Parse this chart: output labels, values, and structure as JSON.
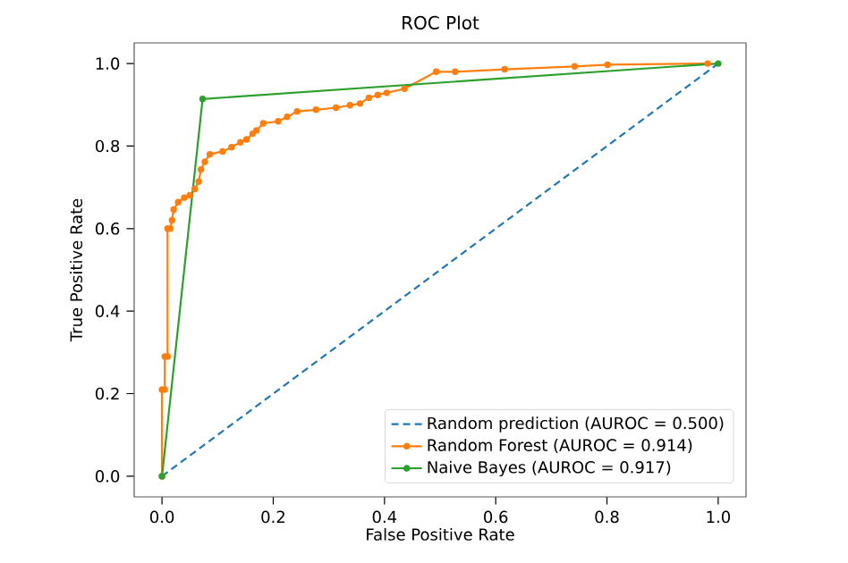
{
  "chart_data": {
    "type": "line",
    "title": "ROC Plot",
    "xlabel": "False Positive Rate",
    "ylabel": "True Positive Rate",
    "xlim": [
      -0.05,
      1.05
    ],
    "ylim": [
      -0.05,
      1.05
    ],
    "xticks": [
      {
        "value": 0,
        "label": "0.0"
      },
      {
        "value": 0.2,
        "label": "0.2"
      },
      {
        "value": 0.4,
        "label": "0.4"
      },
      {
        "value": 0.6,
        "label": "0.6"
      },
      {
        "value": 0.8,
        "label": "0.8"
      },
      {
        "value": 1,
        "label": "1.0"
      }
    ],
    "yticks": [
      {
        "value": 0,
        "label": "0.0"
      },
      {
        "value": 0.2,
        "label": "0.2"
      },
      {
        "value": 0.4,
        "label": "0.4"
      },
      {
        "value": 0.6,
        "label": "0.6"
      },
      {
        "value": 0.8,
        "label": "0.8"
      },
      {
        "value": 1,
        "label": "1.0"
      }
    ],
    "legend": "bottom right",
    "grid": false,
    "series": [
      {
        "name": "Random prediction (AUROC = 0.500)",
        "color": "#1f77b4",
        "line_style": "dashed",
        "marker": "none",
        "x": [
          0,
          1
        ],
        "values": [
          0,
          1
        ]
      },
      {
        "name": "Random Forest (AUROC = 0.914)",
        "color": "#ff7f0e",
        "line_style": "solid",
        "marker": "circle",
        "x": [
          0,
          0,
          0.005,
          0.005,
          0.01,
          0.01,
          0.015,
          0.018,
          0.021,
          0.029,
          0.04,
          0.05,
          0.059,
          0.066,
          0.07,
          0.077,
          0.086,
          0.109,
          0.125,
          0.141,
          0.152,
          0.163,
          0.17,
          0.182,
          0.209,
          0.225,
          0.243,
          0.277,
          0.313,
          0.338,
          0.356,
          0.372,
          0.388,
          0.404,
          0.436,
          0.493,
          0.527,
          0.616,
          0.742,
          0.801,
          0.981
        ],
        "values": [
          0,
          0.21,
          0.21,
          0.29,
          0.29,
          0.6,
          0.6,
          0.62,
          0.646,
          0.664,
          0.675,
          0.681,
          0.696,
          0.714,
          0.743,
          0.762,
          0.78,
          0.787,
          0.797,
          0.809,
          0.816,
          0.83,
          0.838,
          0.855,
          0.86,
          0.871,
          0.884,
          0.888,
          0.893,
          0.899,
          0.903,
          0.917,
          0.924,
          0.929,
          0.939,
          0.98,
          0.98,
          0.986,
          0.993,
          0.997,
          1
        ]
      },
      {
        "name": "Naive Bayes (AUROC = 0.917)",
        "color": "#2ca02c",
        "line_style": "solid",
        "marker": "circle",
        "x": [
          0,
          0.073,
          1
        ],
        "values": [
          0,
          0.914,
          1
        ]
      }
    ]
  }
}
